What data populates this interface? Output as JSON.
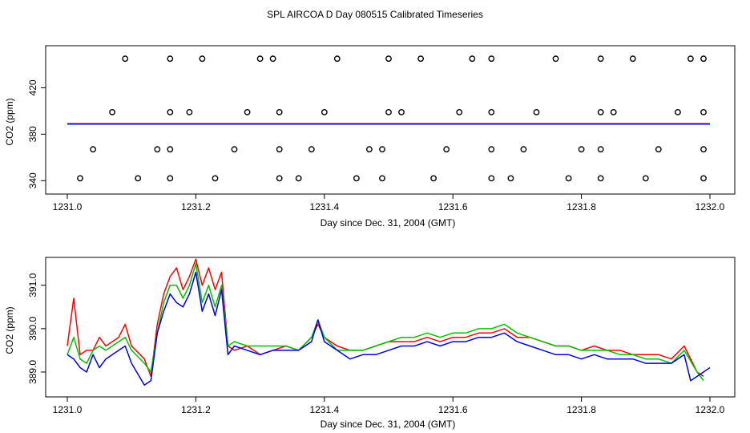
{
  "title": "SPL AIRCOA D  Day 080515  Calibrated Timeseries",
  "colors": {
    "red": "#ff0000",
    "green": "#00c000",
    "blue": "#0000e0",
    "axes": "#000000"
  },
  "chart_data": [
    {
      "type": "scatter",
      "xlabel": "Day since Dec. 31, 2004 (GMT)",
      "ylabel": "CO2 (ppm)",
      "xlim": [
        1231.0,
        1232.0
      ],
      "ylim": [
        334,
        450
      ],
      "xticks": [
        "1231.0",
        "1231.2",
        "1231.4",
        "1231.6",
        "1231.8",
        "1232.0"
      ],
      "yticks": [
        "340",
        "380",
        "420"
      ],
      "marker": "open-circle",
      "points_x": [
        1231.09,
        1231.16,
        1231.21,
        1231.3,
        1231.32,
        1231.42,
        1231.5,
        1231.55,
        1231.63,
        1231.66,
        1231.76,
        1231.83,
        1231.88,
        1231.97,
        1231.99,
        1231.07,
        1231.16,
        1231.19,
        1231.28,
        1231.33,
        1231.4,
        1231.5,
        1231.52,
        1231.61,
        1231.66,
        1231.73,
        1231.83,
        1231.85,
        1231.95,
        1231.99,
        1231.04,
        1231.14,
        1231.16,
        1231.26,
        1231.33,
        1231.38,
        1231.47,
        1231.49,
        1231.59,
        1231.66,
        1231.71,
        1231.8,
        1231.83,
        1231.92,
        1231.99,
        1231.02,
        1231.11,
        1231.16,
        1231.23,
        1231.33,
        1231.36,
        1231.45,
        1231.49,
        1231.57,
        1231.66,
        1231.69,
        1231.78,
        1231.83,
        1231.9,
        1231.99
      ],
      "points_y": [
        445,
        445,
        445,
        445,
        445,
        445,
        445,
        445,
        445,
        445,
        445,
        445,
        445,
        445,
        445,
        399,
        399,
        399,
        399,
        399,
        399,
        399,
        399,
        399,
        399,
        399,
        399,
        399,
        399,
        399,
        367,
        367,
        367,
        367,
        367,
        367,
        367,
        367,
        367,
        367,
        367,
        367,
        367,
        367,
        367,
        342,
        342,
        342,
        342,
        342,
        342,
        342,
        342,
        342,
        342,
        342,
        342,
        342,
        342,
        342
      ],
      "series": [
        {
          "color": "#00c000",
          "x": [
            1231.0,
            1232.0
          ],
          "y": [
            388.9,
            388.9
          ]
        },
        {
          "color": "#ff0000",
          "x": [
            1231.0,
            1232.0
          ],
          "y": [
            389.0,
            389.0
          ]
        },
        {
          "color": "#0000e0",
          "x": [
            1231.0,
            1232.0
          ],
          "y": [
            388.7,
            388.7
          ]
        }
      ]
    },
    {
      "type": "line",
      "xlabel": "Day since Dec. 31, 2004 (GMT)",
      "ylabel": "CO2 (ppm)",
      "xlim": [
        1231.0,
        1232.0
      ],
      "ylim": [
        388.5,
        391.55
      ],
      "xticks": [
        "1231.0",
        "1231.2",
        "1231.4",
        "1231.6",
        "1231.8",
        "1232.0"
      ],
      "yticks": [
        "389.0",
        "390.0",
        "391.0"
      ],
      "series": [
        {
          "color": "#ff0000",
          "x": [
            1231.0,
            1231.01,
            1231.02,
            1231.03,
            1231.04,
            1231.05,
            1231.06,
            1231.08,
            1231.09,
            1231.1,
            1231.12,
            1231.13,
            1231.14,
            1231.15,
            1231.16,
            1231.17,
            1231.18,
            1231.19,
            1231.2,
            1231.21,
            1231.22,
            1231.23,
            1231.24,
            1231.25,
            1231.26,
            1231.28,
            1231.3,
            1231.32,
            1231.34,
            1231.36,
            1231.38,
            1231.39,
            1231.4,
            1231.42,
            1231.44,
            1231.46,
            1231.48,
            1231.5,
            1231.52,
            1231.54,
            1231.56,
            1231.58,
            1231.6,
            1231.62,
            1231.64,
            1231.66,
            1231.68,
            1231.7,
            1231.72,
            1231.74,
            1231.76,
            1231.78,
            1231.8,
            1231.82,
            1231.84,
            1231.86,
            1231.88,
            1231.9,
            1231.92,
            1231.94,
            1231.96,
            1231.98,
            1231.99
          ],
          "y": [
            389.6,
            390.7,
            389.4,
            389.5,
            389.5,
            389.8,
            389.6,
            389.8,
            390.1,
            389.6,
            389.3,
            388.9,
            390.1,
            390.8,
            391.2,
            391.4,
            390.9,
            391.2,
            391.6,
            391.0,
            391.4,
            390.9,
            391.3,
            389.6,
            389.5,
            389.6,
            389.4,
            389.5,
            389.6,
            389.5,
            389.8,
            390.1,
            389.8,
            389.6,
            389.5,
            389.5,
            389.6,
            389.7,
            389.7,
            389.7,
            389.8,
            389.7,
            389.8,
            389.8,
            389.9,
            389.9,
            390.0,
            389.8,
            389.8,
            389.7,
            389.6,
            389.6,
            389.5,
            389.6,
            389.5,
            389.5,
            389.4,
            389.4,
            389.4,
            389.3,
            389.6,
            389.0,
            388.9
          ]
        },
        {
          "color": "#00c000",
          "x": [
            1231.0,
            1231.01,
            1231.02,
            1231.03,
            1231.04,
            1231.05,
            1231.06,
            1231.08,
            1231.09,
            1231.1,
            1231.12,
            1231.13,
            1231.14,
            1231.15,
            1231.16,
            1231.17,
            1231.18,
            1231.19,
            1231.2,
            1231.21,
            1231.22,
            1231.23,
            1231.24,
            1231.25,
            1231.26,
            1231.28,
            1231.3,
            1231.32,
            1231.34,
            1231.36,
            1231.38,
            1231.39,
            1231.4,
            1231.42,
            1231.44,
            1231.46,
            1231.48,
            1231.5,
            1231.52,
            1231.54,
            1231.56,
            1231.58,
            1231.6,
            1231.62,
            1231.64,
            1231.66,
            1231.68,
            1231.7,
            1231.72,
            1231.74,
            1231.76,
            1231.78,
            1231.8,
            1231.82,
            1231.84,
            1231.86,
            1231.88,
            1231.9,
            1231.92,
            1231.94,
            1231.96,
            1231.98,
            1231.99
          ],
          "y": [
            389.4,
            389.8,
            389.3,
            389.2,
            389.5,
            389.6,
            389.5,
            389.7,
            389.8,
            389.5,
            389.2,
            389.0,
            389.9,
            390.6,
            391.0,
            391.0,
            390.7,
            391.0,
            391.5,
            390.6,
            391.0,
            390.5,
            391.0,
            389.6,
            389.7,
            389.6,
            389.6,
            389.6,
            389.6,
            389.5,
            389.8,
            390.2,
            389.8,
            389.5,
            389.5,
            389.5,
            389.6,
            389.7,
            389.8,
            389.8,
            389.9,
            389.8,
            389.9,
            389.9,
            390.0,
            390.0,
            390.1,
            389.9,
            389.8,
            389.7,
            389.6,
            389.6,
            389.5,
            389.5,
            389.5,
            389.4,
            389.4,
            389.3,
            389.3,
            389.2,
            389.5,
            389.0,
            388.8
          ]
        },
        {
          "color": "#0000e0",
          "x": [
            1231.0,
            1231.01,
            1231.02,
            1231.03,
            1231.04,
            1231.05,
            1231.06,
            1231.08,
            1231.09,
            1231.1,
            1231.12,
            1231.13,
            1231.14,
            1231.15,
            1231.16,
            1231.17,
            1231.18,
            1231.19,
            1231.2,
            1231.21,
            1231.22,
            1231.23,
            1231.24,
            1231.25,
            1231.26,
            1231.28,
            1231.3,
            1231.32,
            1231.34,
            1231.36,
            1231.38,
            1231.39,
            1231.4,
            1231.42,
            1231.44,
            1231.46,
            1231.48,
            1231.5,
            1231.52,
            1231.54,
            1231.56,
            1231.58,
            1231.6,
            1231.62,
            1231.64,
            1231.66,
            1231.68,
            1231.7,
            1231.72,
            1231.74,
            1231.76,
            1231.78,
            1231.8,
            1231.82,
            1231.84,
            1231.86,
            1231.88,
            1231.9,
            1231.92,
            1231.94,
            1231.96,
            1231.97,
            1231.98,
            1232.0
          ],
          "y": [
            389.4,
            389.3,
            389.1,
            389.0,
            389.4,
            389.1,
            389.3,
            389.5,
            389.6,
            389.2,
            388.7,
            388.8,
            389.9,
            390.4,
            390.8,
            390.6,
            390.5,
            390.8,
            391.3,
            390.4,
            390.8,
            390.3,
            390.9,
            389.4,
            389.6,
            389.5,
            389.4,
            389.5,
            389.5,
            389.5,
            389.7,
            390.2,
            389.7,
            389.5,
            389.3,
            389.4,
            389.4,
            389.5,
            389.6,
            389.6,
            389.7,
            389.6,
            389.7,
            389.7,
            389.8,
            389.8,
            389.9,
            389.7,
            389.6,
            389.5,
            389.4,
            389.4,
            389.3,
            389.4,
            389.3,
            389.3,
            389.3,
            389.2,
            389.2,
            389.2,
            389.4,
            388.8,
            388.9,
            389.1
          ]
        }
      ]
    }
  ]
}
